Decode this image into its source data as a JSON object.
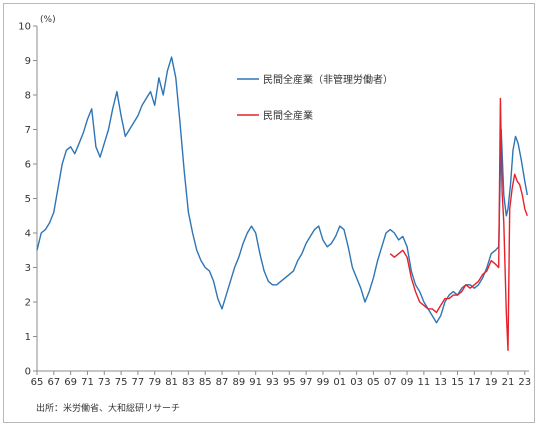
{
  "chart_data": {
    "type": "line",
    "unit_label": "(%)",
    "xlabel": "",
    "ylabel": "",
    "ylim": [
      0,
      10
    ],
    "y_ticks": [
      0,
      1,
      2,
      3,
      4,
      5,
      6,
      7,
      8,
      9,
      10
    ],
    "xlim": [
      1965,
      2023.5
    ],
    "x_tick_labels": [
      "65",
      "67",
      "69",
      "71",
      "73",
      "75",
      "77",
      "79",
      "81",
      "83",
      "85",
      "87",
      "89",
      "91",
      "93",
      "95",
      "97",
      "99",
      "01",
      "03",
      "05",
      "07",
      "09",
      "11",
      "13",
      "15",
      "17",
      "19",
      "21",
      "23"
    ],
    "x_tick_years": [
      1965,
      1967,
      1969,
      1971,
      1973,
      1975,
      1977,
      1979,
      1981,
      1983,
      1985,
      1987,
      1989,
      1991,
      1993,
      1995,
      1997,
      1999,
      2001,
      2003,
      2005,
      2007,
      2009,
      2011,
      2013,
      2015,
      2017,
      2019,
      2021,
      2023
    ],
    "grid": false,
    "legend_position": "top-right",
    "source_note": "出所：米労働省、大和総研リサーチ",
    "series": [
      {
        "name": "民間全産業（非管理労働者）",
        "color": "#2e75b6",
        "points": [
          [
            1965.0,
            3.5
          ],
          [
            1965.5,
            4.0
          ],
          [
            1966.0,
            4.1
          ],
          [
            1966.5,
            4.3
          ],
          [
            1967.0,
            4.6
          ],
          [
            1967.5,
            5.3
          ],
          [
            1968.0,
            6.0
          ],
          [
            1968.5,
            6.4
          ],
          [
            1969.0,
            6.5
          ],
          [
            1969.5,
            6.3
          ],
          [
            1970.0,
            6.6
          ],
          [
            1970.5,
            6.9
          ],
          [
            1971.0,
            7.3
          ],
          [
            1971.5,
            7.6
          ],
          [
            1972.0,
            6.5
          ],
          [
            1972.5,
            6.2
          ],
          [
            1973.0,
            6.6
          ],
          [
            1973.5,
            7.0
          ],
          [
            1974.0,
            7.6
          ],
          [
            1974.5,
            8.1
          ],
          [
            1975.0,
            7.4
          ],
          [
            1975.5,
            6.8
          ],
          [
            1976.0,
            7.0
          ],
          [
            1976.5,
            7.2
          ],
          [
            1977.0,
            7.4
          ],
          [
            1977.5,
            7.7
          ],
          [
            1978.0,
            7.9
          ],
          [
            1978.5,
            8.1
          ],
          [
            1979.0,
            7.7
          ],
          [
            1979.5,
            8.5
          ],
          [
            1980.0,
            8.0
          ],
          [
            1980.5,
            8.7
          ],
          [
            1981.0,
            9.1
          ],
          [
            1981.5,
            8.5
          ],
          [
            1982.0,
            7.2
          ],
          [
            1982.5,
            5.8
          ],
          [
            1983.0,
            4.6
          ],
          [
            1983.5,
            4.0
          ],
          [
            1984.0,
            3.5
          ],
          [
            1984.5,
            3.2
          ],
          [
            1985.0,
            3.0
          ],
          [
            1985.5,
            2.9
          ],
          [
            1986.0,
            2.6
          ],
          [
            1986.5,
            2.1
          ],
          [
            1987.0,
            1.8
          ],
          [
            1987.5,
            2.2
          ],
          [
            1988.0,
            2.6
          ],
          [
            1988.5,
            3.0
          ],
          [
            1989.0,
            3.3
          ],
          [
            1989.5,
            3.7
          ],
          [
            1990.0,
            4.0
          ],
          [
            1990.5,
            4.2
          ],
          [
            1991.0,
            4.0
          ],
          [
            1991.5,
            3.4
          ],
          [
            1992.0,
            2.9
          ],
          [
            1992.5,
            2.6
          ],
          [
            1993.0,
            2.5
          ],
          [
            1993.5,
            2.5
          ],
          [
            1994.0,
            2.6
          ],
          [
            1994.5,
            2.7
          ],
          [
            1995.0,
            2.8
          ],
          [
            1995.5,
            2.9
          ],
          [
            1996.0,
            3.2
          ],
          [
            1996.5,
            3.4
          ],
          [
            1997.0,
            3.7
          ],
          [
            1997.5,
            3.9
          ],
          [
            1998.0,
            4.1
          ],
          [
            1998.5,
            4.2
          ],
          [
            1999.0,
            3.8
          ],
          [
            1999.5,
            3.6
          ],
          [
            2000.0,
            3.7
          ],
          [
            2000.5,
            3.9
          ],
          [
            2001.0,
            4.2
          ],
          [
            2001.5,
            4.1
          ],
          [
            2002.0,
            3.6
          ],
          [
            2002.5,
            3.0
          ],
          [
            2003.0,
            2.7
          ],
          [
            2003.5,
            2.4
          ],
          [
            2004.0,
            2.0
          ],
          [
            2004.5,
            2.3
          ],
          [
            2005.0,
            2.7
          ],
          [
            2005.5,
            3.2
          ],
          [
            2006.0,
            3.6
          ],
          [
            2006.5,
            4.0
          ],
          [
            2007.0,
            4.1
          ],
          [
            2007.5,
            4.0
          ],
          [
            2008.0,
            3.8
          ],
          [
            2008.5,
            3.9
          ],
          [
            2009.0,
            3.6
          ],
          [
            2009.5,
            2.9
          ],
          [
            2010.0,
            2.5
          ],
          [
            2010.5,
            2.3
          ],
          [
            2011.0,
            2.0
          ],
          [
            2011.5,
            1.8
          ],
          [
            2012.0,
            1.6
          ],
          [
            2012.5,
            1.4
          ],
          [
            2013.0,
            1.6
          ],
          [
            2013.5,
            2.0
          ],
          [
            2014.0,
            2.2
          ],
          [
            2014.5,
            2.3
          ],
          [
            2015.0,
            2.2
          ],
          [
            2015.5,
            2.4
          ],
          [
            2016.0,
            2.5
          ],
          [
            2016.5,
            2.5
          ],
          [
            2017.0,
            2.4
          ],
          [
            2017.5,
            2.5
          ],
          [
            2018.0,
            2.7
          ],
          [
            2018.5,
            3.0
          ],
          [
            2019.0,
            3.4
          ],
          [
            2019.5,
            3.5
          ],
          [
            2019.9,
            3.6
          ],
          [
            2020.2,
            7.0
          ],
          [
            2020.5,
            5.1
          ],
          [
            2020.8,
            4.5
          ],
          [
            2021.0,
            4.7
          ],
          [
            2021.3,
            5.4
          ],
          [
            2021.6,
            6.4
          ],
          [
            2021.9,
            6.8
          ],
          [
            2022.2,
            6.6
          ],
          [
            2022.6,
            6.1
          ],
          [
            2023.0,
            5.5
          ],
          [
            2023.3,
            5.1
          ]
        ]
      },
      {
        "name": "民間全産業",
        "color": "#e8202a",
        "points": [
          [
            2007.0,
            3.4
          ],
          [
            2007.5,
            3.3
          ],
          [
            2008.0,
            3.4
          ],
          [
            2008.5,
            3.5
          ],
          [
            2009.0,
            3.3
          ],
          [
            2009.5,
            2.7
          ],
          [
            2010.0,
            2.3
          ],
          [
            2010.5,
            2.0
          ],
          [
            2011.0,
            1.9
          ],
          [
            2011.5,
            1.8
          ],
          [
            2012.0,
            1.8
          ],
          [
            2012.5,
            1.7
          ],
          [
            2013.0,
            1.9
          ],
          [
            2013.5,
            2.1
          ],
          [
            2014.0,
            2.1
          ],
          [
            2014.5,
            2.2
          ],
          [
            2015.0,
            2.2
          ],
          [
            2015.5,
            2.3
          ],
          [
            2016.0,
            2.5
          ],
          [
            2016.5,
            2.4
          ],
          [
            2017.0,
            2.5
          ],
          [
            2017.5,
            2.6
          ],
          [
            2018.0,
            2.8
          ],
          [
            2018.5,
            2.9
          ],
          [
            2019.0,
            3.2
          ],
          [
            2019.5,
            3.1
          ],
          [
            2019.9,
            3.0
          ],
          [
            2020.1,
            7.9
          ],
          [
            2020.3,
            5.2
          ],
          [
            2020.5,
            4.3
          ],
          [
            2020.8,
            1.7
          ],
          [
            2021.0,
            0.6
          ],
          [
            2021.2,
            4.7
          ],
          [
            2021.5,
            5.3
          ],
          [
            2021.8,
            5.7
          ],
          [
            2022.1,
            5.5
          ],
          [
            2022.4,
            5.4
          ],
          [
            2022.7,
            5.1
          ],
          [
            2023.0,
            4.7
          ],
          [
            2023.3,
            4.5
          ]
        ]
      }
    ]
  }
}
